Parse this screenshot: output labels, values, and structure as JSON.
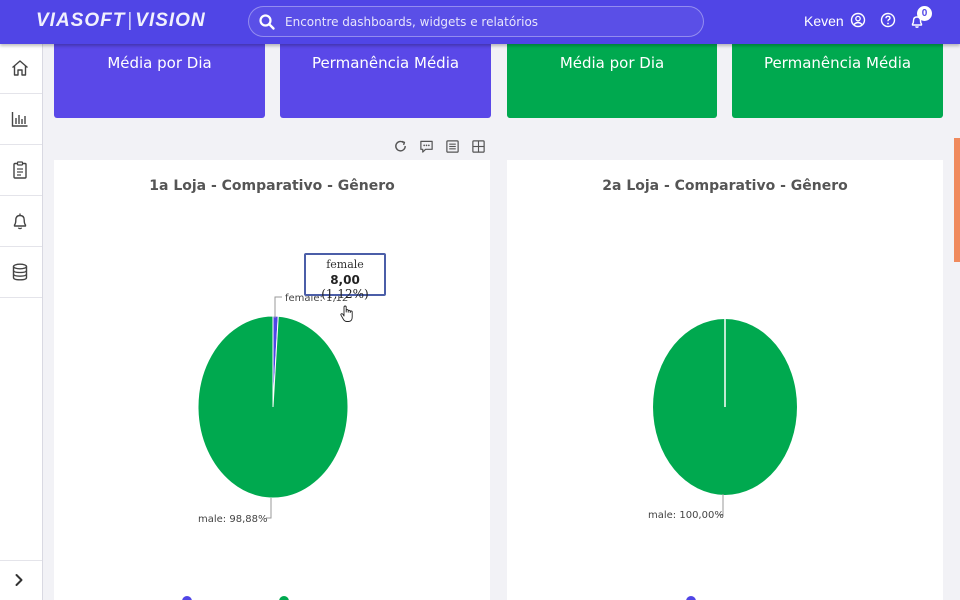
{
  "header": {
    "logo_left": "VIASOFT",
    "logo_sep": "|",
    "logo_right": "VISION",
    "search_placeholder": "Encontre dashboards, widgets e relatórios",
    "user_name": "Keven",
    "notification_count": "0",
    "icons": [
      "search-icon",
      "user-circle-icon",
      "help-icon",
      "bell-icon"
    ]
  },
  "sidebar": {
    "items": [
      "home-icon",
      "bar-chart-icon",
      "clipboard-icon",
      "bell-icon",
      "database-icon"
    ],
    "expand_icon": "chevron-right-icon"
  },
  "kpi_cards": [
    {
      "label": "Média por Dia",
      "color": "#5a48e8"
    },
    {
      "label": "Permanência Média",
      "color": "#5a48e8"
    },
    {
      "label": "Média por Dia",
      "color": "#00a94f"
    },
    {
      "label": "Permanência Média",
      "color": "#00a94f"
    }
  ],
  "toolbar_icons": [
    "refresh-icon",
    "comment-icon",
    "list-icon",
    "grid-icon"
  ],
  "colors": {
    "female": "#5045e6",
    "male": "#00a94f"
  },
  "chart_data": [
    {
      "type": "pie",
      "title": "1a Loja - Comparativo - Gênero",
      "slices": [
        {
          "name": "female",
          "value": 8.0,
          "percent": 1.12,
          "label": "female: 1,12"
        },
        {
          "name": "male",
          "percent": 98.88,
          "label": "male: 98,88%"
        }
      ],
      "tooltip": {
        "name": "female",
        "value": "8,00",
        "percent": "(1,12%)"
      }
    },
    {
      "type": "pie",
      "title": "2a Loja - Comparativo - Gênero",
      "slices": [
        {
          "name": "male",
          "percent": 100.0,
          "label": "male: 100,00%"
        }
      ]
    }
  ]
}
